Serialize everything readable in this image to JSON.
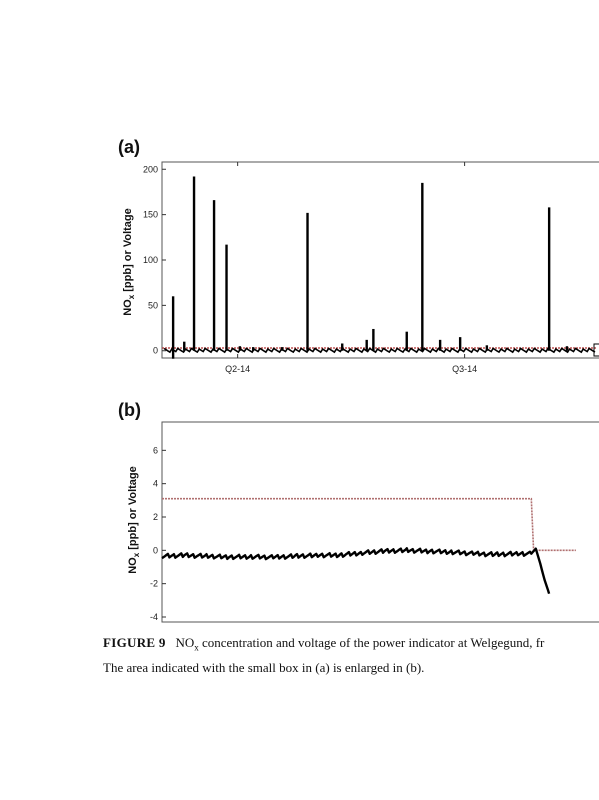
{
  "panels": [
    {
      "label": "(a)",
      "ylabel_main": "NO",
      "ylabel_sub": "x",
      "ylabel_rest": " [ppb] or Voltage",
      "chart_data": {
        "type": "line",
        "ylim": [
          -8,
          208
        ],
        "yticks": [
          "0",
          "50",
          "100",
          "150",
          "200"
        ],
        "ytick_values": [
          0,
          50,
          100,
          150,
          200
        ],
        "xlim": [
          0,
          1
        ],
        "xtick_labels": [
          "Q2-14",
          "Q3-14"
        ],
        "xtick_positions": [
          0.17,
          0.68
        ],
        "grid": false,
        "series": [
          {
            "kind": "spikes",
            "color": "#000000",
            "x": [
              0.025,
              0.05,
              0.072,
              0.117,
              0.145,
              0.175,
              0.205,
              0.27,
              0.327,
              0.405,
              0.46,
              0.475,
              0.55,
              0.585,
              0.625,
              0.67,
              0.73,
              0.87,
              0.91
            ],
            "values": [
              60,
              10,
              192,
              166,
              117,
              5,
              4,
              4,
              152,
              8,
              12,
              24,
              21,
              185,
              12,
              15,
              6,
              158,
              5
            ]
          },
          {
            "kind": "baseline-noise",
            "color": "#000000",
            "level": 0.5
          },
          {
            "kind": "voltage",
            "color": "#b03030",
            "level": 3
          }
        ]
      }
    },
    {
      "label": "(b)",
      "ylabel_main": "NO",
      "ylabel_sub": "x",
      "ylabel_rest": " [ppb] or Voltage",
      "chart_data": {
        "type": "line",
        "ylim": [
          -4.3,
          7.7
        ],
        "yticks": [
          "-4",
          "-2",
          "0",
          "2",
          "4",
          "6"
        ],
        "ytick_values": [
          -4,
          -2,
          0,
          2,
          4,
          6
        ],
        "xlim": [
          0,
          1
        ],
        "grid": false,
        "series": [
          {
            "kind": "nox",
            "color": "#000000",
            "x": [
              0,
              0.05,
              0.1,
              0.15,
              0.2,
              0.25,
              0.3,
              0.35,
              0.4,
              0.45,
              0.5,
              0.55,
              0.6,
              0.65,
              0.7,
              0.75,
              0.8,
              0.83,
              0.84,
              0.85,
              0.86,
              0.87
            ],
            "values": [
              -0.35,
              -0.3,
              -0.35,
              -0.4,
              -0.38,
              -0.42,
              -0.35,
              -0.3,
              -0.28,
              -0.15,
              -0.05,
              0.0,
              -0.05,
              -0.1,
              -0.2,
              -0.25,
              -0.2,
              -0.2,
              0.1,
              -0.8,
              -1.8,
              -2.6
            ]
          },
          {
            "kind": "voltage",
            "color": "#b07070",
            "x": [
              0,
              0.83,
              0.835,
              0.93
            ],
            "values": [
              3.1,
              3.1,
              0.0,
              0.0
            ]
          }
        ]
      }
    }
  ],
  "caption": {
    "figure": "FIGURE 9",
    "line1_pre": "NO",
    "line1_sub": "x",
    "line1_post": " concentration and voltage of the power indicator at Welgegund, fr",
    "line2": "The area indicated with the small box in (a) is enlarged in (b)."
  }
}
